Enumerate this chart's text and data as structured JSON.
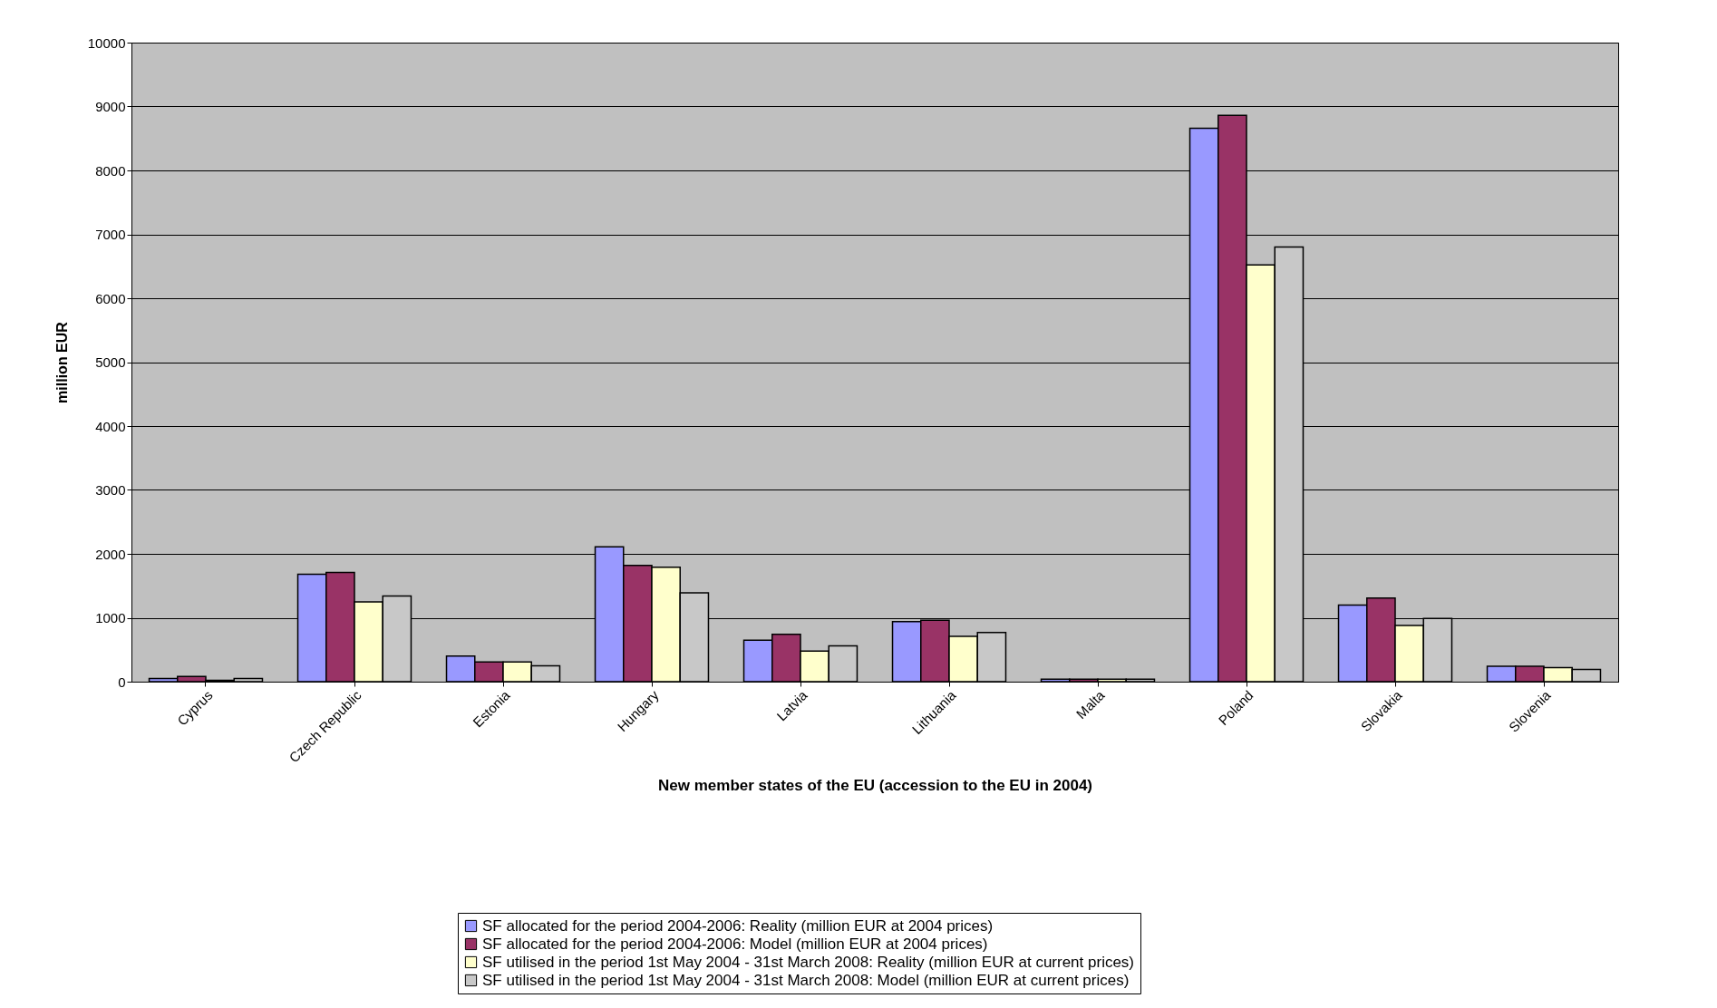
{
  "chart_data": {
    "type": "bar",
    "xlabel": "New member states of the EU (accession to the EU in 2004)",
    "ylabel": "million EUR",
    "categories": [
      "Cyprus",
      "Czech Republic",
      "Estonia",
      "Hungary",
      "Latvia",
      "Lithuania",
      "Malta",
      "Poland",
      "Slovakia",
      "Slovenia"
    ],
    "series": [
      {
        "name": "SF allocated for the period 2004-2006: Reality (million EUR at 2004 prices)",
        "color": "#9999ff",
        "values": [
          50,
          1680,
          400,
          2110,
          650,
          940,
          40,
          8660,
          1200,
          240
        ]
      },
      {
        "name": "SF allocated for the period 2004-2006: Model (million EUR at 2004 prices)",
        "color": "#993366",
        "values": [
          80,
          1710,
          310,
          1820,
          740,
          960,
          40,
          8860,
          1310,
          240
        ]
      },
      {
        "name": "SF utilised in the period 1st May 2004 - 31st March 2008: Reality (million EUR at current prices)",
        "color": "#ffffcc",
        "values": [
          20,
          1250,
          310,
          1790,
          480,
          710,
          40,
          6520,
          880,
          220
        ]
      },
      {
        "name": "SF utilised in the period 1st May 2004 - 31st March 2008: Model (million EUR at current prices)",
        "color": "#c8c8c8",
        "values": [
          50,
          1340,
          250,
          1390,
          560,
          770,
          40,
          6800,
          990,
          190
        ]
      }
    ],
    "ylim": [
      0,
      10000
    ],
    "yticks": [
      0,
      1000,
      2000,
      3000,
      4000,
      5000,
      6000,
      7000,
      8000,
      9000,
      10000
    ],
    "grid": "y",
    "legend": "bottom"
  }
}
